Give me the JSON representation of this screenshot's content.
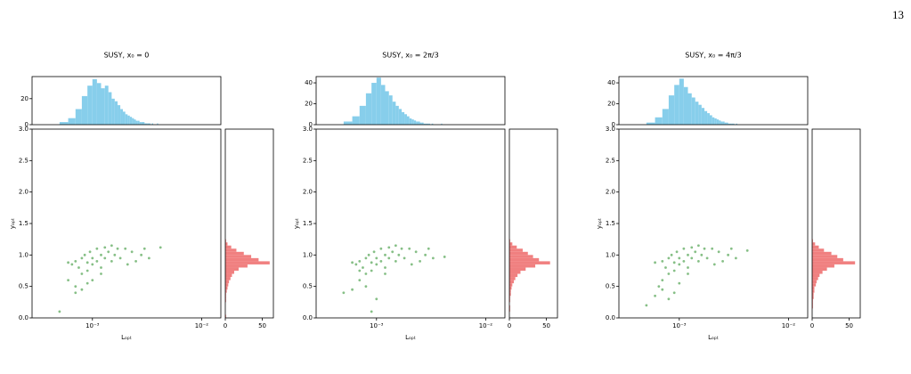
{
  "page_number": "13",
  "chart_data": [
    {
      "type": "scatter",
      "title": "SUSY, x₀ = 0",
      "xlabel": "Lₒₚₜ",
      "ylabel": "yₒₚₜ",
      "xlog": true,
      "color": "#228b22",
      "xlim": [
        0.00028,
        0.015
      ],
      "xticks": [
        {
          "value": 0.001,
          "label": "10⁻³"
        },
        {
          "value": 0.01,
          "label": "10⁻²"
        }
      ],
      "ylim": [
        0,
        3
      ],
      "yticks": [
        {
          "value": 0,
          "label": "0.0"
        },
        {
          "value": 0.5,
          "label": "0.5"
        },
        {
          "value": 1,
          "label": "1.0"
        },
        {
          "value": 1.5,
          "label": "1.5"
        },
        {
          "value": 2,
          "label": "2.0"
        },
        {
          "value": 2.5,
          "label": "2.5"
        },
        {
          "value": 3,
          "label": "3.0"
        }
      ],
      "x": [
        0.0005,
        0.0006,
        0.00065,
        0.0007,
        0.0007,
        0.00075,
        0.0008,
        0.0008,
        0.00085,
        0.0009,
        0.0009,
        0.00095,
        0.001,
        0.001,
        0.0011,
        0.0011,
        0.0012,
        0.0012,
        0.0013,
        0.0013,
        0.0014,
        0.0015,
        0.0015,
        0.0016,
        0.0017,
        0.0018,
        0.002,
        0.0021,
        0.0023,
        0.0025,
        0.0028,
        0.003,
        0.0033,
        0.0042,
        0.0009,
        0.001,
        0.0012,
        0.0008,
        0.0007,
        0.0006
      ],
      "y": [
        0.1,
        0.6,
        0.85,
        0.9,
        0.5,
        0.8,
        0.95,
        0.7,
        1.0,
        0.88,
        0.75,
        1.05,
        0.95,
        0.85,
        1.1,
        0.9,
        1.0,
        0.8,
        1.12,
        0.95,
        1.05,
        1.15,
        0.9,
        1.0,
        1.1,
        0.95,
        1.1,
        0.85,
        1.05,
        0.9,
        1.0,
        1.1,
        0.95,
        1.12,
        0.55,
        0.6,
        0.7,
        0.45,
        0.4,
        0.88
      ],
      "top_hist": {
        "type": "histogram",
        "color": "#87ceeb",
        "ylim": [
          0,
          37
        ],
        "yticks": [
          0,
          20
        ],
        "bins": [
          0.0005,
          0.0006,
          0.0007,
          0.0008,
          0.0009,
          0.001,
          0.0011,
          0.0012,
          0.0013,
          0.0014,
          0.0015,
          0.0016,
          0.0017,
          0.0018,
          0.0019,
          0.002,
          0.0021,
          0.0022,
          0.0023,
          0.0024,
          0.0025,
          0.0026,
          0.0027,
          0.0028,
          0.0029,
          0.003,
          0.0031,
          0.0032,
          0.0033,
          0.0034,
          0.0035,
          0.0036,
          0.0037,
          0.0038,
          0.0039,
          0.004
        ],
        "counts": [
          2,
          5,
          12,
          22,
          30,
          35,
          32,
          28,
          30,
          25,
          20,
          18,
          15,
          12,
          10,
          8,
          7,
          6,
          5,
          4,
          3,
          3,
          2,
          2,
          2,
          1,
          1,
          1,
          1,
          0,
          1,
          0,
          0,
          0,
          1
        ]
      },
      "right_hist": {
        "type": "histogram",
        "color": "#f08080",
        "xlim": [
          0,
          65
        ],
        "xticks": [
          0,
          50
        ],
        "bins": [
          0,
          0.05,
          0.1,
          0.15,
          0.2,
          0.25,
          0.3,
          0.35,
          0.4,
          0.45,
          0.5,
          0.55,
          0.6,
          0.65,
          0.7,
          0.75,
          0.8,
          0.85,
          0.9,
          0.95,
          1.0,
          1.05,
          1.1,
          1.15,
          1.2,
          1.25,
          1.3
        ],
        "counts": [
          1,
          0,
          0,
          0,
          0,
          1,
          1,
          1,
          2,
          3,
          4,
          5,
          7,
          9,
          12,
          18,
          30,
          60,
          45,
          35,
          25,
          15,
          8,
          3,
          1,
          0
        ]
      }
    },
    {
      "type": "scatter",
      "title": "SUSY, x₀ = 2π/3",
      "xlabel": "Lₒₚₜ",
      "ylabel": "yₒₚₜ",
      "xlog": true,
      "color": "#228b22",
      "xlim": [
        0.00028,
        0.015
      ],
      "xticks": [
        {
          "value": 0.001,
          "label": "10⁻³"
        },
        {
          "value": 0.01,
          "label": "10⁻²"
        }
      ],
      "ylim": [
        0,
        3
      ],
      "yticks": [
        {
          "value": 0,
          "label": "0.0"
        },
        {
          "value": 0.5,
          "label": "0.5"
        },
        {
          "value": 1,
          "label": "1.0"
        },
        {
          "value": 1.5,
          "label": "1.5"
        },
        {
          "value": 2,
          "label": "2.0"
        },
        {
          "value": 2.5,
          "label": "2.5"
        },
        {
          "value": 3,
          "label": "3.0"
        }
      ],
      "x": [
        0.0005,
        0.0006,
        0.00065,
        0.0007,
        0.0007,
        0.00075,
        0.0008,
        0.0008,
        0.00085,
        0.0009,
        0.0009,
        0.00095,
        0.001,
        0.001,
        0.0011,
        0.0011,
        0.0012,
        0.0012,
        0.0013,
        0.0013,
        0.0014,
        0.0015,
        0.0015,
        0.0016,
        0.0017,
        0.0018,
        0.002,
        0.0021,
        0.0023,
        0.0025,
        0.0028,
        0.003,
        0.0033,
        0.0042,
        0.0009,
        0.001,
        0.0012,
        0.0008,
        0.0007,
        0.0006
      ],
      "y": [
        0.4,
        0.45,
        0.85,
        0.9,
        0.6,
        0.8,
        0.95,
        0.7,
        1.0,
        0.88,
        0.75,
        1.05,
        0.95,
        0.85,
        1.1,
        0.9,
        1.0,
        0.8,
        1.12,
        0.95,
        1.05,
        1.15,
        0.9,
        1.0,
        1.1,
        0.95,
        1.1,
        0.85,
        1.05,
        0.9,
        1.0,
        1.1,
        0.95,
        0.97,
        0.1,
        0.3,
        0.7,
        0.5,
        0.75,
        0.88
      ],
      "top_hist": {
        "type": "histogram",
        "color": "#87ceeb",
        "ylim": [
          0,
          46
        ],
        "yticks": [
          0,
          20,
          40
        ],
        "bins": [
          0.0005,
          0.0006,
          0.0007,
          0.0008,
          0.0009,
          0.001,
          0.0011,
          0.0012,
          0.0013,
          0.0014,
          0.0015,
          0.0016,
          0.0017,
          0.0018,
          0.0019,
          0.002,
          0.0021,
          0.0022,
          0.0023,
          0.0024,
          0.0025,
          0.0026,
          0.0027,
          0.0028,
          0.0029,
          0.003,
          0.0031,
          0.0032,
          0.0033,
          0.0034,
          0.0035,
          0.0036,
          0.0037,
          0.0038,
          0.0039,
          0.004
        ],
        "counts": [
          3,
          8,
          18,
          30,
          40,
          45,
          38,
          32,
          28,
          22,
          18,
          15,
          12,
          10,
          8,
          6,
          5,
          4,
          3,
          3,
          2,
          2,
          1,
          1,
          1,
          1,
          0,
          1,
          0,
          0,
          0,
          0,
          0,
          0,
          1
        ]
      },
      "right_hist": {
        "type": "histogram",
        "color": "#f08080",
        "xlim": [
          0,
          65
        ],
        "xticks": [
          0,
          50
        ],
        "bins": [
          0,
          0.05,
          0.1,
          0.15,
          0.2,
          0.25,
          0.3,
          0.35,
          0.4,
          0.45,
          0.5,
          0.55,
          0.6,
          0.65,
          0.7,
          0.75,
          0.8,
          0.85,
          0.9,
          0.95,
          1.0,
          1.05,
          1.1,
          1.15,
          1.2,
          1.25,
          1.3
        ],
        "counts": [
          0,
          0,
          1,
          1,
          0,
          1,
          1,
          2,
          2,
          3,
          4,
          6,
          8,
          11,
          15,
          22,
          35,
          55,
          40,
          32,
          25,
          18,
          10,
          4,
          1,
          0
        ]
      }
    },
    {
      "type": "scatter",
      "title": "SUSY, x₀ = 4π/3",
      "xlabel": "Lₒₚₜ",
      "ylabel": "yₒₚₜ",
      "xlog": true,
      "color": "#228b22",
      "xlim": [
        0.00028,
        0.015
      ],
      "xticks": [
        {
          "value": 0.001,
          "label": "10⁻³"
        },
        {
          "value": 0.01,
          "label": "10⁻²"
        }
      ],
      "ylim": [
        0,
        3
      ],
      "yticks": [
        {
          "value": 0,
          "label": "0.0"
        },
        {
          "value": 0.5,
          "label": "0.5"
        },
        {
          "value": 1,
          "label": "1.0"
        },
        {
          "value": 1.5,
          "label": "1.5"
        },
        {
          "value": 2,
          "label": "2.0"
        },
        {
          "value": 2.5,
          "label": "2.5"
        },
        {
          "value": 3,
          "label": "3.0"
        }
      ],
      "x": [
        0.0005,
        0.0006,
        0.00065,
        0.0007,
        0.0007,
        0.00075,
        0.0008,
        0.0008,
        0.00085,
        0.0009,
        0.0009,
        0.00095,
        0.001,
        0.001,
        0.0011,
        0.0011,
        0.0012,
        0.0012,
        0.0013,
        0.0013,
        0.0014,
        0.0015,
        0.0015,
        0.0016,
        0.0017,
        0.0018,
        0.002,
        0.0021,
        0.0023,
        0.0025,
        0.0028,
        0.003,
        0.0033,
        0.0042,
        0.0009,
        0.001,
        0.0012,
        0.0008,
        0.0007,
        0.0006
      ],
      "y": [
        0.2,
        0.35,
        0.5,
        0.9,
        0.6,
        0.8,
        0.95,
        0.7,
        1.0,
        0.88,
        0.75,
        1.05,
        0.95,
        0.85,
        1.1,
        0.9,
        1.0,
        0.8,
        1.12,
        0.95,
        1.05,
        1.15,
        0.9,
        1.0,
        1.1,
        0.95,
        1.1,
        0.85,
        1.05,
        0.9,
        1.0,
        1.1,
        0.95,
        1.07,
        0.4,
        0.55,
        0.7,
        0.3,
        0.45,
        0.88
      ],
      "top_hist": {
        "type": "histogram",
        "color": "#87ceeb",
        "ylim": [
          0,
          46
        ],
        "yticks": [
          0,
          20,
          40
        ],
        "bins": [
          0.0005,
          0.0006,
          0.0007,
          0.0008,
          0.0009,
          0.001,
          0.0011,
          0.0012,
          0.0013,
          0.0014,
          0.0015,
          0.0016,
          0.0017,
          0.0018,
          0.0019,
          0.002,
          0.0021,
          0.0022,
          0.0023,
          0.0024,
          0.0025,
          0.0026,
          0.0027,
          0.0028,
          0.0029,
          0.003,
          0.0031,
          0.0032,
          0.0033,
          0.0034,
          0.0035,
          0.0036,
          0.0037,
          0.0038,
          0.0039,
          0.004
        ],
        "counts": [
          2,
          7,
          15,
          28,
          38,
          44,
          36,
          30,
          26,
          22,
          19,
          16,
          13,
          11,
          9,
          7,
          6,
          5,
          4,
          3,
          3,
          2,
          2,
          1,
          1,
          1,
          1,
          0,
          1,
          0,
          0,
          0,
          0,
          0,
          0
        ]
      },
      "right_hist": {
        "type": "histogram",
        "color": "#f08080",
        "xlim": [
          0,
          65
        ],
        "xticks": [
          0,
          50
        ],
        "bins": [
          0,
          0.05,
          0.1,
          0.15,
          0.2,
          0.25,
          0.3,
          0.35,
          0.4,
          0.45,
          0.5,
          0.55,
          0.6,
          0.65,
          0.7,
          0.75,
          0.8,
          0.85,
          0.9,
          0.95,
          1.0,
          1.05,
          1.1,
          1.15,
          1.2,
          1.25,
          1.3
        ],
        "counts": [
          0,
          0,
          0,
          1,
          1,
          1,
          2,
          2,
          3,
          3,
          5,
          6,
          8,
          10,
          14,
          20,
          30,
          58,
          42,
          34,
          26,
          16,
          9,
          4,
          1,
          0
        ]
      }
    }
  ]
}
